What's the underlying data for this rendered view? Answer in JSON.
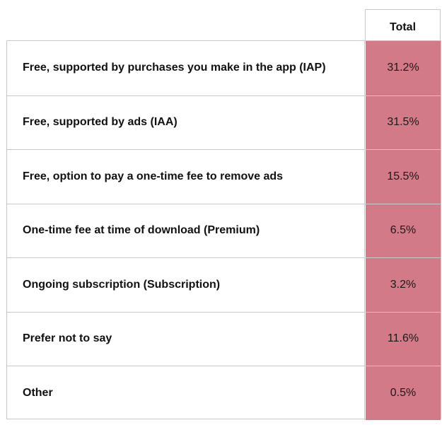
{
  "chart_data": {
    "type": "table",
    "column_header": "Total",
    "highlight_color": "#d27a88",
    "rows": [
      {
        "label": "Free, supported by purchases you make in the app (IAP)",
        "value": "31.2%"
      },
      {
        "label": "Free, supported by ads (IAA)",
        "value": "31.5%"
      },
      {
        "label": "Free, option to pay a one-time fee to remove ads",
        "value": "15.5%"
      },
      {
        "label": "One-time fee at time of download (Premium)",
        "value": "6.5%"
      },
      {
        "label": "Ongoing subscription (Subscription)",
        "value": "3.2%"
      },
      {
        "label": "Prefer not to say",
        "value": "11.6%"
      },
      {
        "label": "Other",
        "value": "0.5%"
      }
    ]
  }
}
